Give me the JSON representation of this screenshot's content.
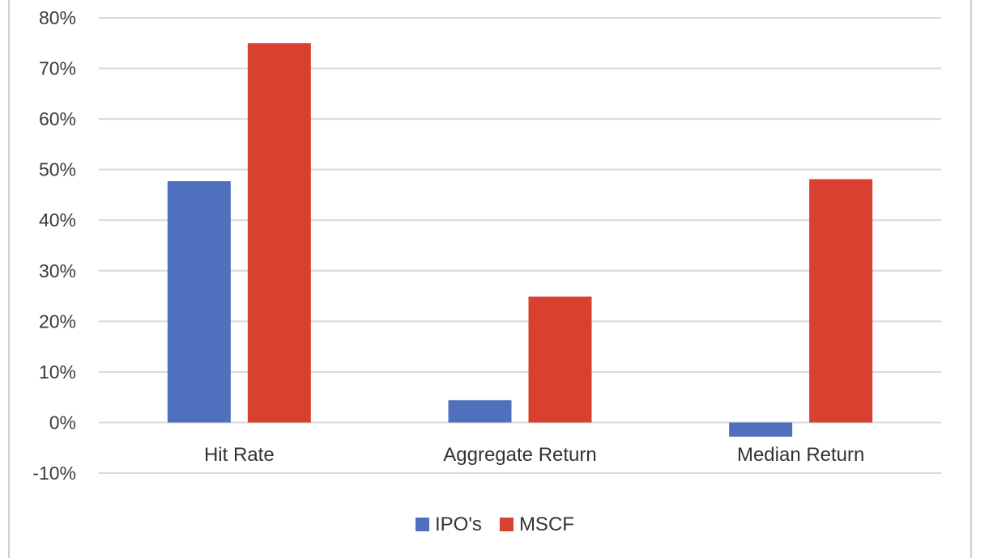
{
  "chart_data": {
    "type": "bar",
    "title": "",
    "xlabel": "",
    "ylabel": "",
    "categories": [
      "Hit Rate",
      "Aggregate Return",
      "Median Return"
    ],
    "series": [
      {
        "name": "IPO's",
        "color": "#4f70bc",
        "values": [
          47.7,
          4.4,
          -2.8
        ]
      },
      {
        "name": "MSCF",
        "color": "#d8412f",
        "values": [
          75.0,
          24.9,
          48.1
        ]
      }
    ],
    "ylim": [
      -10,
      80
    ],
    "yticks": [
      -10,
      0,
      10,
      20,
      30,
      40,
      50,
      60,
      70,
      80
    ],
    "ytick_labels": [
      "-10%",
      "0%",
      "10%",
      "20%",
      "30%",
      "40%",
      "50%",
      "60%",
      "70%",
      "80%"
    ],
    "grid": "horizontal",
    "gridline_color": "#d9d9d9",
    "legend_position": "bottom"
  }
}
